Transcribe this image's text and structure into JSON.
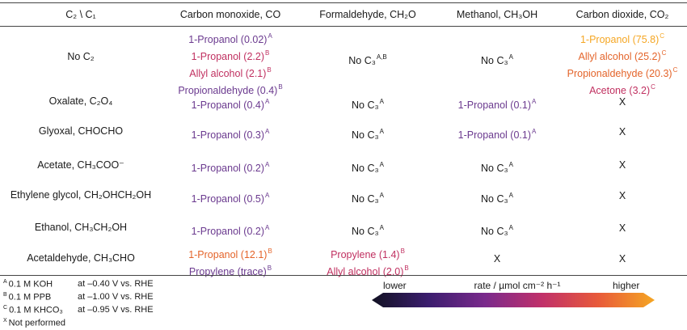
{
  "colors": {
    "very_low": "#6b3a8f",
    "low": "#c03060",
    "mid": "#e4642a",
    "high": "#f5a623",
    "text": "#1a1a1a",
    "gradient_stops": [
      "#111122",
      "#3b1d6e",
      "#7a2a8c",
      "#c0306a",
      "#e85a3a",
      "#f5a623"
    ]
  },
  "table": {
    "corner": "C₂ \\ C₁",
    "columns": [
      "Carbon monoxide, CO",
      "Formaldehyde, CH₂O",
      "Methanol, CH₃OH",
      "Carbon dioxide, CO₂"
    ],
    "rows": [
      {
        "label": "No C₂",
        "cells": [
          [
            {
              "text": "1-Propanol (0.02)",
              "sup": "A",
              "color": "#6b3a8f"
            },
            {
              "text": "1-Propanol (2.2)",
              "sup": "B",
              "color": "#c03060"
            },
            {
              "text": "Allyl alcohol (2.1)",
              "sup": "B",
              "color": "#c03060"
            },
            {
              "text": "Propionaldehyde (0.4)",
              "sup": "B",
              "color": "#6b3a8f"
            }
          ],
          [
            {
              "text": "No C₃",
              "sup": "A,B",
              "color": "#1a1a1a"
            }
          ],
          [
            {
              "text": "No C₃",
              "sup": "A",
              "color": "#1a1a1a"
            }
          ],
          [
            {
              "text": "1-Propanol (75.8)",
              "sup": "C",
              "color": "#f5a623"
            },
            {
              "text": "Allyl alcohol (25.2)",
              "sup": "C",
              "color": "#e4642a"
            },
            {
              "text": "Propionaldehyde (20.3)",
              "sup": "C",
              "color": "#e4642a"
            },
            {
              "text": "Acetone (3.2)",
              "sup": "C",
              "color": "#c03060"
            }
          ]
        ]
      },
      {
        "label": "Oxalate, C₂O₄",
        "cells": [
          [
            {
              "text": "1-Propanol (0.4)",
              "sup": "A",
              "color": "#6b3a8f"
            }
          ],
          [
            {
              "text": "No C₃",
              "sup": "A",
              "color": "#1a1a1a"
            }
          ],
          [
            {
              "text": "1-Propanol (0.1)",
              "sup": "A",
              "color": "#6b3a8f"
            }
          ],
          [
            {
              "text": "X",
              "sup": "",
              "color": "#1a1a1a"
            }
          ]
        ]
      },
      {
        "label": "Glyoxal, CHOCHO",
        "cells": [
          [
            {
              "text": "1-Propanol (0.3)",
              "sup": "A",
              "color": "#6b3a8f"
            }
          ],
          [
            {
              "text": "No C₃",
              "sup": "A",
              "color": "#1a1a1a"
            }
          ],
          [
            {
              "text": "1-Propanol (0.1)",
              "sup": "A",
              "color": "#6b3a8f"
            }
          ],
          [
            {
              "text": "X",
              "sup": "",
              "color": "#1a1a1a"
            }
          ]
        ]
      },
      {
        "label": "Acetate, CH₃COO⁻",
        "cells": [
          [
            {
              "text": "1-Propanol (0.2)",
              "sup": "A",
              "color": "#6b3a8f"
            }
          ],
          [
            {
              "text": "No C₃",
              "sup": "A",
              "color": "#1a1a1a"
            }
          ],
          [
            {
              "text": "No C₃",
              "sup": "A",
              "color": "#1a1a1a"
            }
          ],
          [
            {
              "text": "X",
              "sup": "",
              "color": "#1a1a1a"
            }
          ]
        ]
      },
      {
        "label": "Ethylene glycol, CH₂OHCH₂OH",
        "cells": [
          [
            {
              "text": "1-Propanol (0.5)",
              "sup": "A",
              "color": "#6b3a8f"
            }
          ],
          [
            {
              "text": "No C₃",
              "sup": "A",
              "color": "#1a1a1a"
            }
          ],
          [
            {
              "text": "No C₃",
              "sup": "A",
              "color": "#1a1a1a"
            }
          ],
          [
            {
              "text": "X",
              "sup": "",
              "color": "#1a1a1a"
            }
          ]
        ]
      },
      {
        "label": "Ethanol, CH₃CH₂OH",
        "cells": [
          [
            {
              "text": "1-Propanol (0.2)",
              "sup": "A",
              "color": "#6b3a8f"
            }
          ],
          [
            {
              "text": "No C₃",
              "sup": "A",
              "color": "#1a1a1a"
            }
          ],
          [
            {
              "text": "No C₃",
              "sup": "A",
              "color": "#1a1a1a"
            }
          ],
          [
            {
              "text": "X",
              "sup": "",
              "color": "#1a1a1a"
            }
          ]
        ]
      },
      {
        "label": "Acetaldehyde, CH₃CHO",
        "cells": [
          [
            {
              "text": "1-Propanol (12.1)",
              "sup": "B",
              "color": "#e4642a"
            },
            {
              "text": "Propylene (trace)",
              "sup": "B",
              "color": "#6b3a8f"
            }
          ],
          [
            {
              "text": "Propylene (1.4)",
              "sup": "B",
              "color": "#c03060"
            },
            {
              "text": "Allyl alcohol (2.0)",
              "sup": "B",
              "color": "#c03060"
            }
          ],
          [
            {
              "text": "X",
              "sup": "",
              "color": "#1a1a1a"
            }
          ],
          [
            {
              "text": "X",
              "sup": "",
              "color": "#1a1a1a"
            }
          ]
        ]
      }
    ]
  },
  "footnotes": [
    {
      "sup": "A",
      "text": "0.1 M KOH",
      "condition": "at –0.40 V vs. RHE"
    },
    {
      "sup": "B",
      "text": "0.1 M PPB",
      "condition": "at –1.00 V vs. RHE"
    },
    {
      "sup": "C",
      "text": "0.1 M KHCO₃",
      "condition": "at –0.95 V vs. RHE"
    },
    {
      "sup": "X",
      "text": "Not performed",
      "condition": ""
    }
  ],
  "legend": {
    "low_label": "lower",
    "title": "rate / µmol cm⁻² h⁻¹",
    "high_label": "higher"
  }
}
